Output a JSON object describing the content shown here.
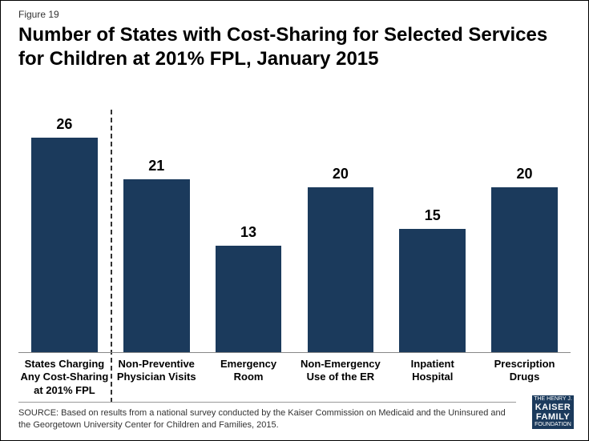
{
  "figure_label": "Figure 19",
  "title": "Number of States with Cost-Sharing for Selected Services for Children at 201% FPL, January 2015",
  "chart": {
    "type": "bar",
    "y_max": 30,
    "bar_color": "#1b3a5c",
    "background_color": "#ffffff",
    "divider_after_index": 0,
    "value_fontsize": 18,
    "value_fontweight": "bold",
    "label_fontsize": 13,
    "label_fontweight": "bold",
    "bars": [
      {
        "label_lines": [
          "States Charging",
          "Any Cost-Sharing",
          "at 201% FPL"
        ],
        "value": 26
      },
      {
        "label_lines": [
          "Non-Preventive",
          "Physician Visits"
        ],
        "value": 21
      },
      {
        "label_lines": [
          "Emergency",
          "Room"
        ],
        "value": 13
      },
      {
        "label_lines": [
          "Non-Emergency",
          "Use of the ER"
        ],
        "value": 20
      },
      {
        "label_lines": [
          "Inpatient",
          "Hospital"
        ],
        "value": 15
      },
      {
        "label_lines": [
          "Prescription",
          "Drugs"
        ],
        "value": 20
      }
    ]
  },
  "source": "SOURCE: Based on results from a national survey conducted by the Kaiser Commission on Medicaid and the Uninsured and the Georgetown University Center for Children and Families, 2015.",
  "logo": {
    "line1": "THE HENRY J.",
    "line2": "KAISER",
    "line3": "FAMILY",
    "line4": "FOUNDATION"
  }
}
